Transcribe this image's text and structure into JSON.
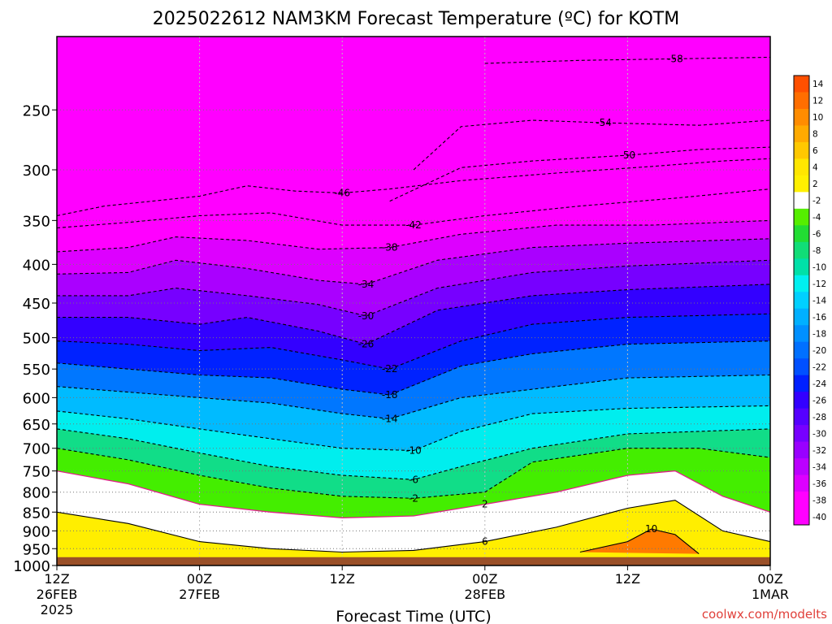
{
  "chart_data": {
    "type": "heatmap",
    "title": "2025022612 NAM3KM Forecast Temperature (ºC) for KOTM",
    "xlabel": "Forecast Time (UTC)",
    "ylabel": "",
    "credit": "coolwx.com/modelts",
    "x_ticks": [
      {
        "hour": 0,
        "line1": "12Z",
        "line2": "26FEB",
        "line3": "2025"
      },
      {
        "hour": 12,
        "line1": "00Z",
        "line2": "27FEB",
        "line3": ""
      },
      {
        "hour": 24,
        "line1": "12Z",
        "line2": "",
        "line3": ""
      },
      {
        "hour": 36,
        "line1": "00Z",
        "line2": "28FEB",
        "line3": ""
      },
      {
        "hour": 48,
        "line1": "12Z",
        "line2": "",
        "line3": ""
      },
      {
        "hour": 60,
        "line1": "00Z",
        "line2": "1MAR",
        "line3": ""
      }
    ],
    "xlim": [
      0,
      60
    ],
    "y_axis": "pressure (hPa), inverted log scale",
    "ylim": [
      1000,
      200
    ],
    "y_ticks": [
      250,
      300,
      350,
      400,
      450,
      500,
      550,
      600,
      650,
      700,
      750,
      800,
      850,
      900,
      950,
      1000
    ],
    "ground_level": 975,
    "colorbar": {
      "labels": [
        "14",
        "12",
        "10",
        "8",
        "6",
        "4",
        "2",
        "-2",
        "-4",
        "-6",
        "-8",
        "-10",
        "-12",
        "-14",
        "-16",
        "-18",
        "-20",
        "-22",
        "-24",
        "-26",
        "-28",
        "-30",
        "-32",
        "-34",
        "-36",
        "-38",
        "-40"
      ],
      "colors": [
        "#ff5000",
        "#ff6e00",
        "#ff8c00",
        "#ffaa00",
        "#ffc800",
        "#ffe600",
        "#fff000",
        "#ffffff",
        "#55ee00",
        "#22dd33",
        "#11dd77",
        "#00e0a8",
        "#00f0f0",
        "#00d0ff",
        "#00b0ff",
        "#0090ff",
        "#0070ff",
        "#0050ff",
        "#0020ff",
        "#3300ff",
        "#5500ff",
        "#7700ff",
        "#9900ff",
        "#bb00ff",
        "#dd00ff",
        "#ff00ff",
        "#ff00ff"
      ]
    },
    "isotherms": [
      {
        "label": "-58",
        "temp": -58,
        "points": [
          [
            36,
            217
          ],
          [
            44,
            215
          ],
          [
            52,
            214
          ],
          [
            60,
            213
          ]
        ]
      },
      {
        "label": "-54",
        "temp": -54,
        "points": [
          [
            30,
            300
          ],
          [
            34,
            263
          ],
          [
            40,
            258
          ],
          [
            46,
            260
          ],
          [
            54,
            262
          ],
          [
            60,
            258
          ]
        ]
      },
      {
        "label": "-50",
        "temp": -50,
        "points": [
          [
            28,
            330
          ],
          [
            34,
            298
          ],
          [
            40,
            292
          ],
          [
            48,
            287
          ],
          [
            54,
            282
          ],
          [
            60,
            280
          ]
        ]
      },
      {
        "label": "-46",
        "temp": -46,
        "points": [
          [
            0,
            345
          ],
          [
            4,
            335
          ],
          [
            8,
            330
          ],
          [
            12,
            325
          ],
          [
            16,
            315
          ],
          [
            20,
            320
          ],
          [
            24,
            322
          ],
          [
            28,
            318
          ],
          [
            34,
            310
          ],
          [
            42,
            303
          ],
          [
            50,
            297
          ],
          [
            56,
            292
          ],
          [
            60,
            290
          ]
        ]
      },
      {
        "label": "-42",
        "temp": -42,
        "points": [
          [
            0,
            358
          ],
          [
            6,
            352
          ],
          [
            12,
            345
          ],
          [
            18,
            342
          ],
          [
            24,
            355
          ],
          [
            30,
            355
          ],
          [
            36,
            345
          ],
          [
            44,
            335
          ],
          [
            52,
            327
          ],
          [
            60,
            318
          ]
        ]
      },
      {
        "label": "-38",
        "temp": -38,
        "points": [
          [
            0,
            385
          ],
          [
            6,
            380
          ],
          [
            10,
            368
          ],
          [
            16,
            372
          ],
          [
            22,
            382
          ],
          [
            28,
            380
          ],
          [
            34,
            365
          ],
          [
            42,
            355
          ],
          [
            50,
            355
          ],
          [
            60,
            350
          ]
        ]
      },
      {
        "label": "-34",
        "temp": -34,
        "points": [
          [
            0,
            412
          ],
          [
            6,
            410
          ],
          [
            10,
            395
          ],
          [
            16,
            405
          ],
          [
            22,
            420
          ],
          [
            26,
            425
          ],
          [
            32,
            395
          ],
          [
            40,
            380
          ],
          [
            48,
            375
          ],
          [
            60,
            370
          ]
        ]
      },
      {
        "label": "-30",
        "temp": -30,
        "points": [
          [
            0,
            440
          ],
          [
            6,
            440
          ],
          [
            10,
            430
          ],
          [
            16,
            440
          ],
          [
            22,
            452
          ],
          [
            26,
            468
          ],
          [
            32,
            430
          ],
          [
            40,
            410
          ],
          [
            48,
            402
          ],
          [
            60,
            395
          ]
        ]
      },
      {
        "label": "-26",
        "temp": -26,
        "points": [
          [
            0,
            470
          ],
          [
            6,
            470
          ],
          [
            12,
            480
          ],
          [
            16,
            470
          ],
          [
            22,
            490
          ],
          [
            26,
            510
          ],
          [
            32,
            460
          ],
          [
            40,
            440
          ],
          [
            48,
            432
          ],
          [
            60,
            425
          ]
        ]
      },
      {
        "label": "-22",
        "temp": -22,
        "points": [
          [
            0,
            505
          ],
          [
            6,
            510
          ],
          [
            12,
            520
          ],
          [
            18,
            515
          ],
          [
            24,
            535
          ],
          [
            28,
            550
          ],
          [
            34,
            505
          ],
          [
            40,
            480
          ],
          [
            48,
            470
          ],
          [
            60,
            465
          ]
        ]
      },
      {
        "label": "-18",
        "temp": -18,
        "points": [
          [
            0,
            540
          ],
          [
            6,
            550
          ],
          [
            12,
            560
          ],
          [
            18,
            565
          ],
          [
            24,
            585
          ],
          [
            28,
            595
          ],
          [
            34,
            545
          ],
          [
            40,
            525
          ],
          [
            48,
            510
          ],
          [
            60,
            505
          ]
        ]
      },
      {
        "label": "-14",
        "temp": -14,
        "points": [
          [
            0,
            580
          ],
          [
            6,
            590
          ],
          [
            12,
            600
          ],
          [
            18,
            610
          ],
          [
            24,
            630
          ],
          [
            28,
            640
          ],
          [
            34,
            600
          ],
          [
            40,
            585
          ],
          [
            48,
            565
          ],
          [
            60,
            560
          ]
        ]
      },
      {
        "label": "-10",
        "temp": -10,
        "points": [
          [
            0,
            625
          ],
          [
            6,
            640
          ],
          [
            12,
            660
          ],
          [
            18,
            680
          ],
          [
            24,
            700
          ],
          [
            30,
            705
          ],
          [
            34,
            665
          ],
          [
            40,
            630
          ],
          [
            48,
            620
          ],
          [
            60,
            615
          ]
        ]
      },
      {
        "label": "-6",
        "temp": -6,
        "points": [
          [
            0,
            660
          ],
          [
            6,
            680
          ],
          [
            12,
            710
          ],
          [
            18,
            740
          ],
          [
            24,
            760
          ],
          [
            30,
            770
          ],
          [
            34,
            740
          ],
          [
            40,
            700
          ],
          [
            48,
            670
          ],
          [
            60,
            660
          ]
        ]
      },
      {
        "label": "-2",
        "temp": -2,
        "points": [
          [
            0,
            700
          ],
          [
            6,
            725
          ],
          [
            12,
            760
          ],
          [
            18,
            790
          ],
          [
            24,
            810
          ],
          [
            30,
            815
          ],
          [
            36,
            800
          ],
          [
            40,
            730
          ],
          [
            48,
            700
          ],
          [
            54,
            700
          ],
          [
            60,
            720
          ]
        ]
      },
      {
        "label": "2",
        "temp": 2,
        "points": [
          [
            0,
            750
          ],
          [
            6,
            780
          ],
          [
            12,
            830
          ],
          [
            18,
            850
          ],
          [
            24,
            865
          ],
          [
            30,
            860
          ],
          [
            36,
            830
          ],
          [
            42,
            800
          ],
          [
            48,
            760
          ],
          [
            52,
            750
          ],
          [
            56,
            810
          ],
          [
            60,
            850
          ]
        ]
      },
      {
        "label": "6",
        "temp": 6,
        "points": [
          [
            0,
            850
          ],
          [
            6,
            880
          ],
          [
            12,
            930
          ],
          [
            18,
            950
          ],
          [
            24,
            960
          ],
          [
            30,
            955
          ],
          [
            36,
            930
          ],
          [
            42,
            890
          ],
          [
            48,
            840
          ],
          [
            52,
            820
          ],
          [
            56,
            900
          ],
          [
            60,
            930
          ]
        ]
      },
      {
        "label": "10",
        "temp": 10,
        "points": [
          [
            44,
            960
          ],
          [
            48,
            930
          ],
          [
            50,
            895
          ],
          [
            52,
            910
          ],
          [
            54,
            965
          ]
        ]
      }
    ]
  }
}
